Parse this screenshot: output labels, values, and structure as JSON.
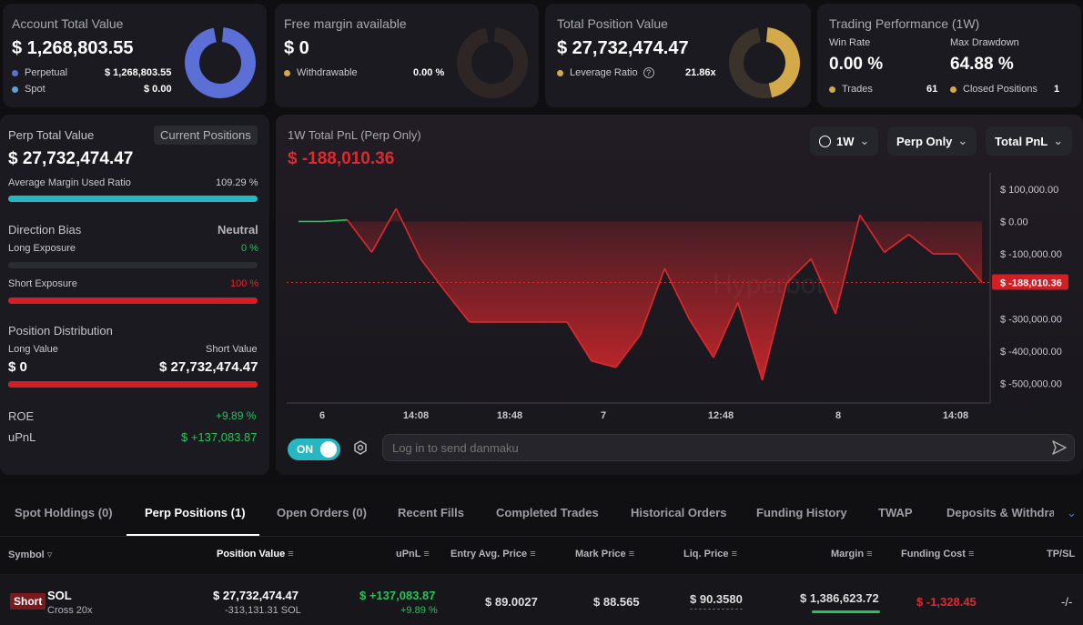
{
  "account": {
    "title": "Account Total Value",
    "value": "$ 1,268,803.55",
    "perpetual_label": "Perpetual",
    "perpetual_value": "$ 1,268,803.55",
    "spot_label": "Spot",
    "spot_value": "$ 0.00"
  },
  "margin": {
    "title": "Free margin available",
    "value": "$ 0",
    "withdrawable_label": "Withdrawable",
    "withdrawable_value": "0.00 %"
  },
  "position": {
    "title": "Total Position Value",
    "value": "$ 27,732,474.47",
    "leverage_label": "Leverage Ratio",
    "leverage_value": "21.86x"
  },
  "performance": {
    "title": "Trading Performance (1W)",
    "win_rate_label": "Win Rate",
    "win_rate_value": "0.00 %",
    "drawdown_label": "Max Drawdown",
    "drawdown_value": "64.88 %",
    "trades_label": "Trades",
    "trades_value": "61",
    "closed_label": "Closed Positions",
    "closed_value": "1"
  },
  "perp": {
    "title": "Perp Total Value",
    "current_positions": "Current Positions",
    "value": "$ 27,732,474.47",
    "margin_ratio_label": "Average Margin Used Ratio",
    "margin_ratio_value": "109.29 %",
    "margin_ratio_fill": 1.0,
    "bias_label": "Direction Bias",
    "bias_value": "Neutral",
    "long_label": "Long Exposure",
    "long_value": "0 %",
    "long_fill": 0.0,
    "short_label": "Short Exposure",
    "short_value": "100 %",
    "short_fill": 1.0,
    "dist_label": "Position Distribution",
    "long_value_label": "Long Value",
    "short_value_label": "Short Value",
    "long_amount": "$ 0",
    "short_amount": "$ 27,732,474.47",
    "dist_short_fill": 1.0,
    "roe_label": "ROE",
    "roe_value": "+9.89 %",
    "upnl_label": "uPnL",
    "upnl_value": "$ +137,083.87"
  },
  "chart_header": {
    "title": "1W Total PnL (Perp Only)",
    "value": "$ -188,010.36",
    "range_btn": "1W",
    "scope_btn": "Perp Only",
    "metric_btn": "Total PnL",
    "watermark": "Hyperbot"
  },
  "chart_data": {
    "type": "area",
    "x": [
      0,
      1,
      2,
      3,
      4,
      5,
      6,
      7,
      8,
      9,
      10,
      11,
      12,
      13,
      14,
      15,
      16,
      17,
      18,
      19,
      20,
      21,
      22,
      23,
      24,
      25,
      26,
      27,
      28
    ],
    "values": [
      0,
      0,
      5000,
      -95000,
      40000,
      -115000,
      -215000,
      -310000,
      -310000,
      -310000,
      -310000,
      -310000,
      -430000,
      -450000,
      -350000,
      -145000,
      -300000,
      -420000,
      -250000,
      -490000,
      -190000,
      -115000,
      -285000,
      20000,
      -95000,
      -40000,
      -100000,
      -100000,
      -188010
    ],
    "x_tick_labels": [
      "6",
      "14:08",
      "18:48",
      "7",
      "12:48",
      "8",
      "14:08"
    ],
    "y_tick_labels": [
      "$ 100,000.00",
      "$ 0.00",
      "$ -100,000.00",
      "$ -300,000.00",
      "$ -400,000.00",
      "$ -500,000.00"
    ],
    "current_label": "$ -188,010.36",
    "ylim": [
      -560000,
      150000
    ],
    "grid": false
  },
  "danmaku": {
    "toggle": "ON",
    "placeholder": "Log in to send danmaku"
  },
  "tabs": [
    "Spot Holdings (0)",
    "Perp Positions (1)",
    "Open Orders (0)",
    "Recent Fills",
    "Completed Trades",
    "Historical Orders",
    "Funding History",
    "TWAP",
    "Deposits & Withdraw"
  ],
  "table": {
    "headers": [
      "Symbol",
      "Position Value",
      "uPnL",
      "Entry Avg. Price",
      "Mark Price",
      "Liq. Price",
      "Margin",
      "Funding Cost",
      "TP/SL"
    ],
    "row": {
      "side": "Short",
      "symbol": "SOL",
      "mode": "Cross 20x",
      "position_value": "$ 27,732,474.47",
      "position_size": "-313,131.31 SOL",
      "upnl": "$ +137,083.87",
      "upnl_pct": "+9.89 %",
      "entry": "$ 89.0027",
      "mark": "$ 88.565",
      "liq": "$ 90.3580",
      "margin": "$ 1,386,623.72",
      "funding": "$ -1,328.45",
      "tpsl": "-/-"
    }
  },
  "colors": {
    "accent_blue": "#5b6fd6",
    "accent_yellow": "#d4a94a",
    "green": "#27c25c",
    "red": "#e0282e",
    "teal": "#27b7c2"
  }
}
